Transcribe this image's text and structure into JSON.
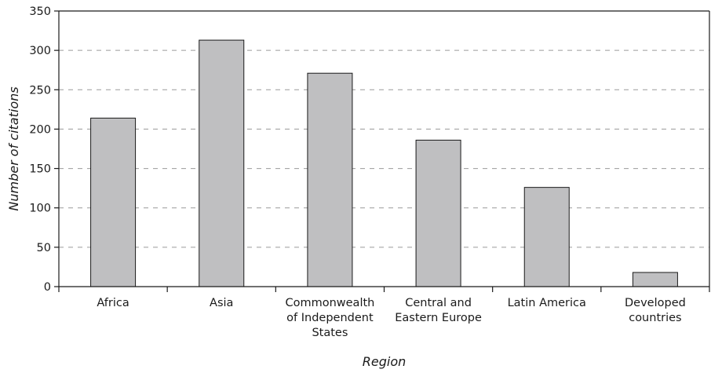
{
  "chart_data": {
    "type": "bar",
    "title": "",
    "xlabel": "Region",
    "ylabel": "Number of citations",
    "categories": [
      [
        "Africa"
      ],
      [
        "Asia"
      ],
      [
        "Commonwealth",
        "of Independent",
        "States"
      ],
      [
        "Central and",
        "Eastern Europe"
      ],
      [
        "Latin America"
      ],
      [
        "Developed",
        "countries"
      ]
    ],
    "values": [
      214,
      313,
      271,
      186,
      126,
      18
    ],
    "ylim": [
      0,
      350
    ],
    "yticks": [
      0,
      50,
      100,
      150,
      200,
      250,
      300,
      350
    ],
    "grid": "horizontal dashed",
    "legend": "none",
    "colors": {
      "bar_fill": "#bfbfc1",
      "bar_stroke": "#1a1a1a",
      "grid": "#9a9a9a",
      "axis": "#1a1a1a"
    }
  }
}
